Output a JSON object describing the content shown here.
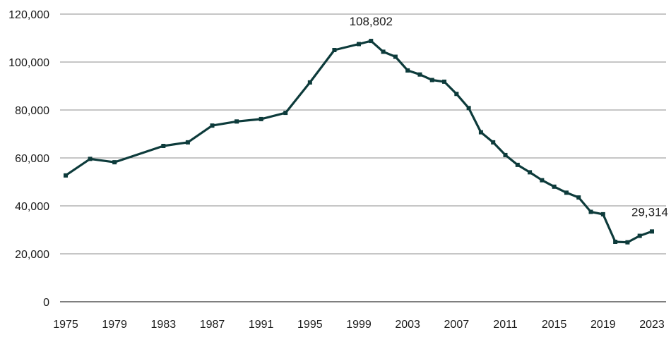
{
  "chart_data": {
    "type": "line",
    "title": "",
    "xlabel": "",
    "ylabel": "",
    "x_ticks": [
      "1975",
      "1979",
      "1983",
      "1987",
      "1991",
      "1995",
      "1999",
      "2003",
      "2007",
      "2011",
      "2015",
      "2019",
      "2023"
    ],
    "y_ticks": [
      "0",
      "20,000",
      "40,000",
      "60,000",
      "80,000",
      "100,000",
      "120,000"
    ],
    "xlim": [
      1975,
      2023
    ],
    "ylim": [
      0,
      120000
    ],
    "grid": true,
    "colors": {
      "line": "#0d3b3b",
      "marker": "#0d3b3b",
      "grid": "#8c8c8c"
    },
    "series": [
      {
        "x": [
          1975,
          1977,
          1979,
          1983,
          1985,
          1987,
          1989,
          1991,
          1993,
          1995,
          1997,
          1999,
          2000,
          2001,
          2002,
          2003,
          2004,
          2005,
          2006,
          2007,
          2008,
          2009,
          2010,
          2011,
          2012,
          2013,
          2014,
          2015,
          2016,
          2017,
          2018,
          2019,
          2020,
          2021,
          2022,
          2023
        ],
        "y": [
          52700,
          59600,
          58200,
          65000,
          66500,
          73500,
          75200,
          76200,
          78800,
          91500,
          105000,
          107500,
          108802,
          104300,
          102200,
          96500,
          94800,
          92500,
          91800,
          86700,
          80800,
          70700,
          66500,
          61200,
          57100,
          54000,
          50700,
          48000,
          45500,
          43500,
          37500,
          36500,
          25000,
          24800,
          27500,
          29314
        ]
      }
    ],
    "annotations": [
      {
        "text": "108,802",
        "x": 2000,
        "y": 108802
      },
      {
        "text": "29,314",
        "x": 2023,
        "y": 29314
      }
    ]
  }
}
